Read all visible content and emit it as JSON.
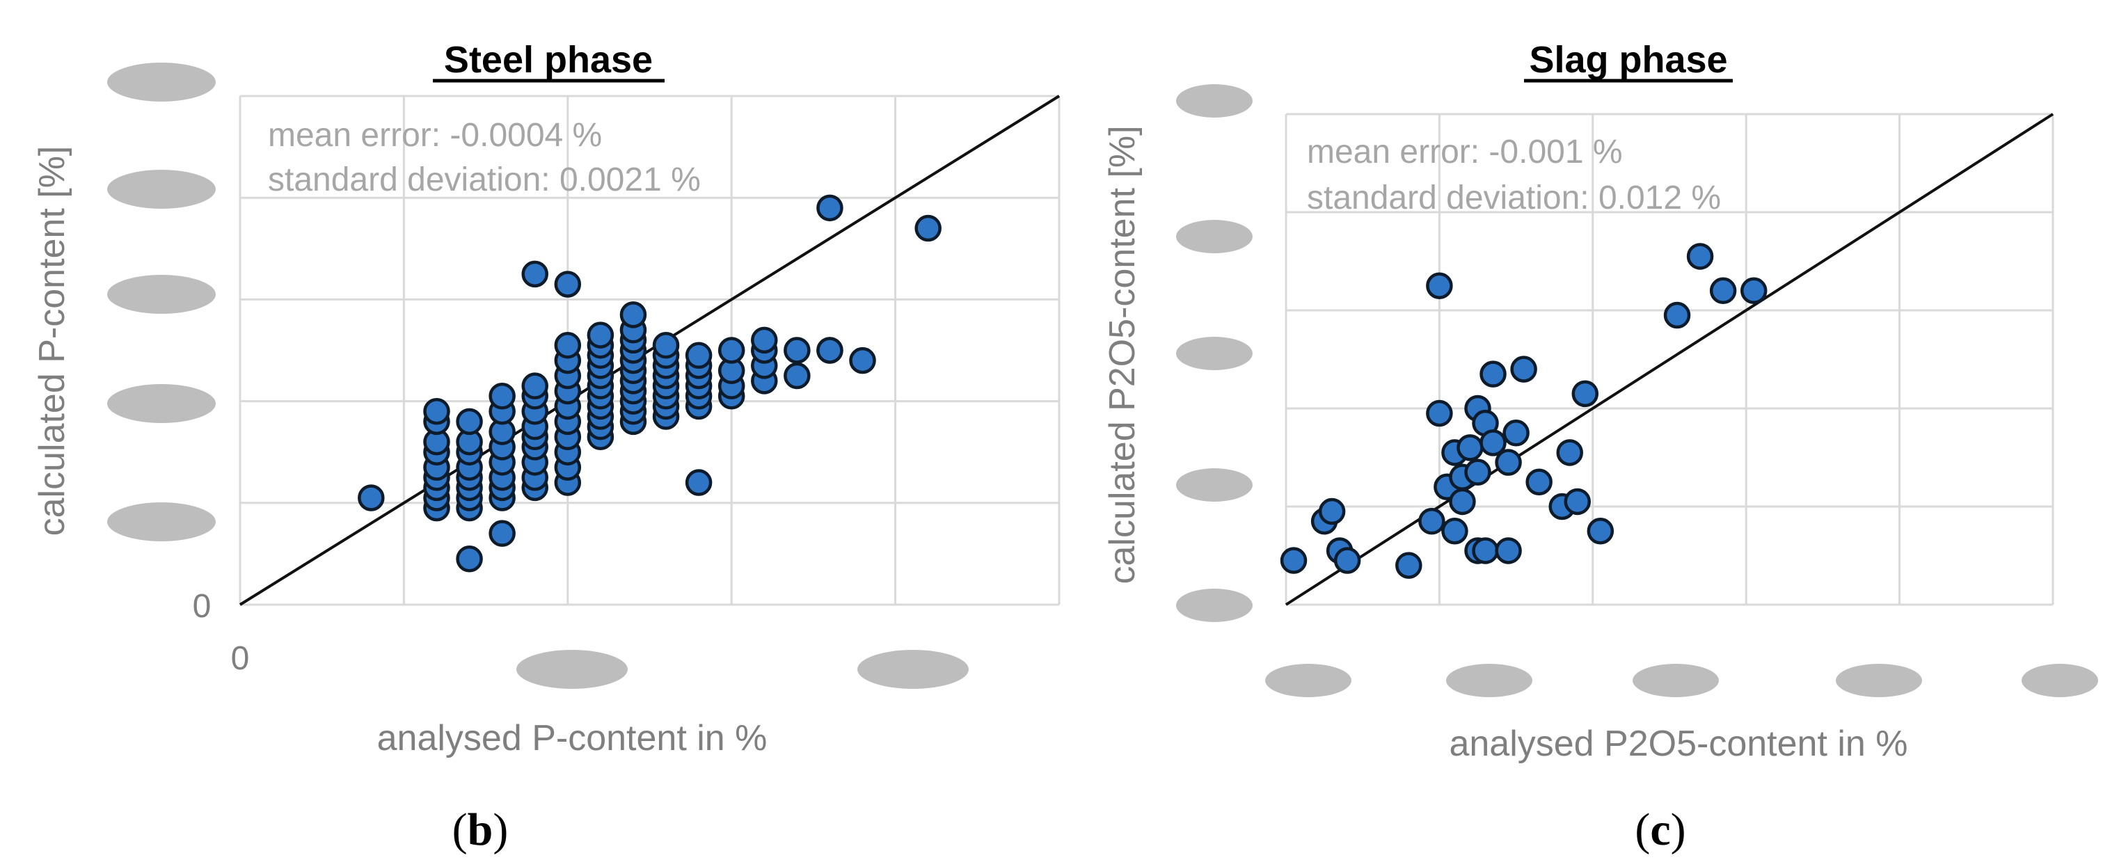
{
  "chart_data": [
    {
      "type": "scatter",
      "title": "Steel phase",
      "xlabel": "analysed P-content in %",
      "ylabel": "calculated P-content [%]",
      "xlim": [
        0,
        5
      ],
      "ylim": [
        0,
        5
      ],
      "x_tick_labels": [
        "0"
      ],
      "y_tick_labels": [
        "0"
      ],
      "annotations": [
        "mean error: -0.0004 %",
        "standard deviation: 0.0021 %"
      ],
      "caption": "b",
      "grid": true,
      "reference_line": "y = x",
      "x": [
        0.8,
        1.2,
        1.2,
        1.2,
        1.2,
        1.2,
        1.2,
        1.2,
        1.2,
        1.2,
        1.4,
        1.4,
        1.4,
        1.4,
        1.4,
        1.4,
        1.4,
        1.4,
        1.4,
        1.6,
        1.6,
        1.6,
        1.6,
        1.6,
        1.6,
        1.6,
        1.6,
        1.6,
        1.8,
        1.8,
        1.8,
        1.8,
        1.8,
        1.8,
        1.8,
        1.8,
        1.8,
        1.8,
        2.0,
        2.0,
        2.0,
        2.0,
        2.0,
        2.0,
        2.0,
        2.0,
        2.0,
        2.0,
        2.0,
        2.2,
        2.2,
        2.2,
        2.2,
        2.2,
        2.2,
        2.2,
        2.2,
        2.2,
        2.2,
        2.2,
        2.4,
        2.4,
        2.4,
        2.4,
        2.4,
        2.4,
        2.4,
        2.4,
        2.4,
        2.4,
        2.4,
        2.6,
        2.6,
        2.6,
        2.6,
        2.6,
        2.6,
        2.6,
        2.6,
        2.8,
        2.8,
        2.8,
        2.8,
        2.8,
        2.8,
        2.8,
        3.0,
        3.0,
        3.0,
        3.0,
        3.2,
        3.2,
        3.2,
        3.2,
        3.4,
        3.4,
        3.6,
        3.6,
        3.8,
        4.2,
        3.6
      ],
      "y": [
        1.05,
        0.95,
        1.05,
        1.15,
        1.25,
        1.35,
        1.5,
        1.6,
        1.8,
        1.9,
        0.45,
        0.95,
        1.05,
        1.15,
        1.25,
        1.35,
        1.5,
        1.6,
        1.8,
        0.7,
        1.05,
        1.15,
        1.25,
        1.4,
        1.55,
        1.7,
        1.9,
        2.05,
        1.15,
        1.25,
        1.4,
        1.55,
        1.65,
        1.75,
        1.9,
        2.05,
        2.15,
        3.25,
        1.2,
        1.35,
        1.5,
        1.65,
        1.8,
        1.95,
        2.1,
        2.25,
        2.4,
        2.55,
        3.15,
        1.65,
        1.75,
        1.85,
        1.95,
        2.05,
        2.15,
        2.25,
        2.35,
        2.45,
        2.55,
        2.65,
        1.8,
        1.9,
        2.0,
        2.1,
        2.2,
        2.3,
        2.4,
        2.5,
        2.6,
        2.7,
        2.85,
        1.85,
        1.95,
        2.05,
        2.15,
        2.25,
        2.35,
        2.45,
        2.55,
        1.2,
        1.95,
        2.05,
        2.15,
        2.25,
        2.35,
        2.45,
        2.05,
        2.15,
        2.3,
        2.5,
        2.2,
        2.35,
        2.5,
        2.6,
        2.25,
        2.5,
        2.5,
        2.5,
        2.4,
        3.7,
        3.9
      ]
    },
    {
      "type": "scatter",
      "title": "Slag phase",
      "xlabel": "analysed P2O5-content in %",
      "ylabel": "calculated P2O5-content [%]",
      "xlim": [
        0,
        5
      ],
      "ylim": [
        0,
        5
      ],
      "annotations": [
        "mean error: -0.001 %",
        "standard deviation: 0.012 %"
      ],
      "caption": "c",
      "grid": true,
      "reference_line": "y = x",
      "x": [
        0.05,
        0.25,
        0.3,
        0.35,
        0.4,
        0.8,
        0.95,
        1.0,
        1.0,
        1.05,
        1.1,
        1.1,
        1.15,
        1.15,
        1.2,
        1.25,
        1.25,
        1.25,
        1.3,
        1.3,
        1.35,
        1.35,
        1.45,
        1.45,
        1.5,
        1.55,
        1.65,
        1.8,
        1.85,
        1.9,
        1.95,
        2.05,
        2.55,
        2.7,
        2.85,
        3.05
      ],
      "y": [
        0.45,
        0.85,
        0.95,
        0.55,
        0.45,
        0.4,
        0.85,
        1.95,
        3.25,
        1.2,
        0.75,
        1.55,
        1.05,
        1.3,
        1.6,
        1.35,
        2.0,
        0.55,
        0.55,
        1.85,
        2.35,
        1.65,
        1.45,
        0.55,
        1.75,
        2.4,
        1.25,
        1.0,
        1.55,
        1.05,
        2.15,
        0.75,
        2.95,
        3.55,
        3.2,
        3.2
      ]
    }
  ]
}
